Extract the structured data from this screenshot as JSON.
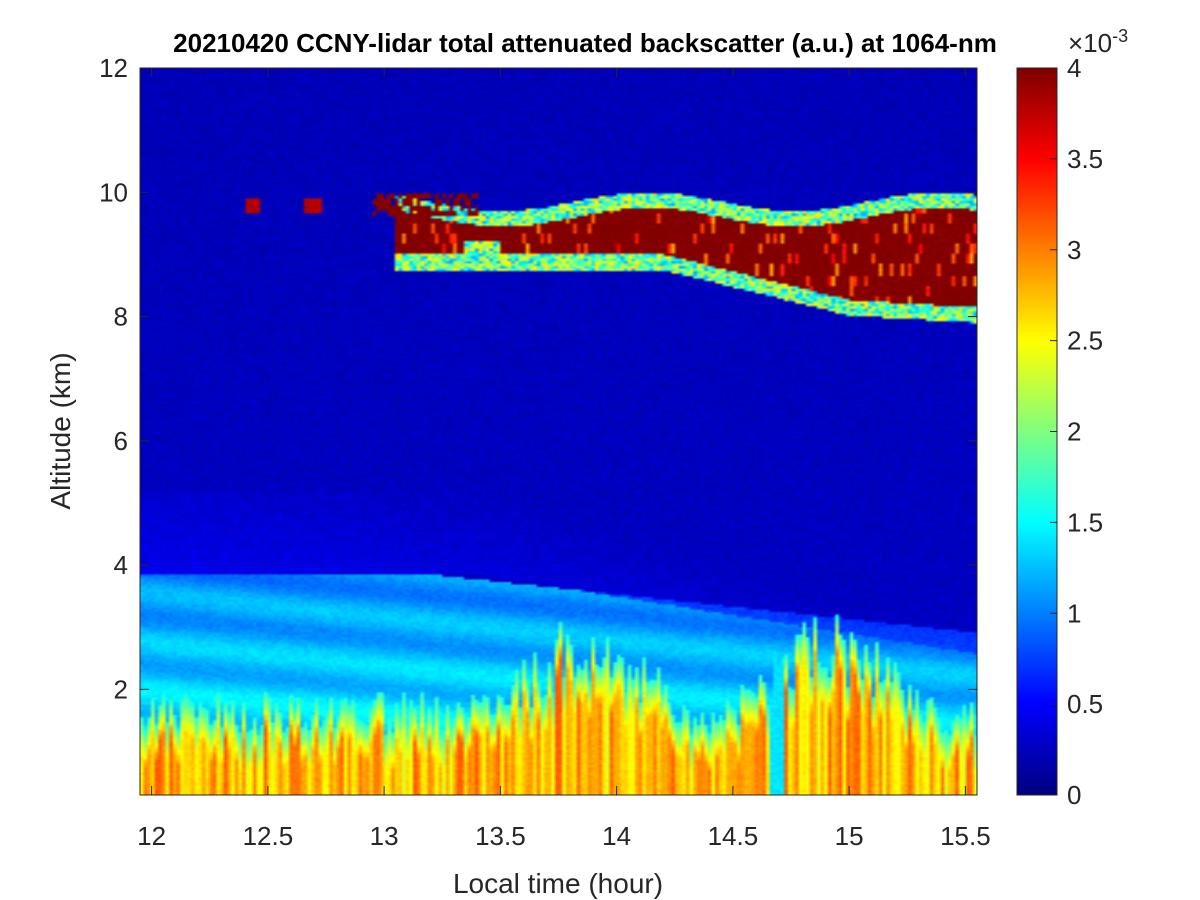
{
  "chart_data": {
    "type": "heatmap",
    "title": "20210420 CCNY-lidar total attenuated backscatter (a.u.) at 1064-nm",
    "xlabel": "Local time (hour)",
    "ylabel": "Altitude (km)",
    "xlim": [
      11.95,
      15.55
    ],
    "ylim": [
      0.3,
      12
    ],
    "xticks": [
      12,
      12.5,
      13,
      13.5,
      14,
      14.5,
      15,
      15.5
    ],
    "xtick_labels": [
      "12",
      "12.5",
      "13",
      "13.5",
      "14",
      "14.5",
      "15",
      "15.5"
    ],
    "yticks": [
      2,
      4,
      6,
      8,
      10,
      12
    ],
    "ytick_labels": [
      "2",
      "4",
      "6",
      "8",
      "10",
      "12"
    ],
    "colorbar": {
      "colormap": "jet",
      "clim": [
        0,
        4
      ],
      "ticks": [
        0,
        0.5,
        1,
        1.5,
        2,
        2.5,
        3,
        3.5,
        4
      ],
      "tick_labels": [
        "0",
        "0.5",
        "1",
        "1.5",
        "2",
        "2.5",
        "3",
        "3.5",
        "4"
      ],
      "exponent_label": "×10",
      "exponent_power": "-3",
      "units": "a.u. (×10^-3)"
    },
    "features": {
      "boundary_layer": {
        "top_km_start": 3.8,
        "top_km_end": 2.6,
        "core_value": 2.3
      },
      "residual_layer": {
        "altitude_km": [
          2.8,
          3.9
        ],
        "value": 1.5
      },
      "cirrus": {
        "altitude_km": [
          8.5,
          10.0
        ],
        "time_hour": [
          13.0,
          15.55
        ],
        "value": 4
      },
      "background_value": 0.3
    }
  }
}
